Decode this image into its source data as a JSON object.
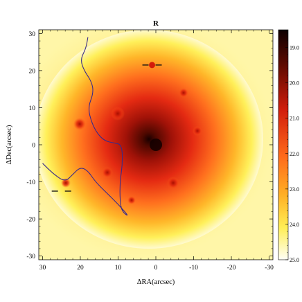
{
  "chart_data": {
    "type": "heatmap",
    "title": "R",
    "xlabel": "ΔRA(arcsec)",
    "ylabel": "ΔDec(arcsec)",
    "xlim": [
      31,
      -31
    ],
    "ylim": [
      -31,
      31
    ],
    "x_ticks": [
      30,
      20,
      10,
      0,
      -10,
      -20,
      -30
    ],
    "y_ticks": [
      30,
      20,
      10,
      0,
      -10,
      -20,
      -30
    ],
    "x_tick_labels": [
      "30",
      "20",
      "10",
      "0",
      "-10",
      "-20",
      "-30"
    ],
    "y_tick_labels": [
      "30",
      "20",
      "10",
      "0",
      "-10",
      "-20",
      "-30"
    ],
    "colorbar": {
      "range": [
        18.5,
        25.0
      ],
      "reversed": true,
      "ticks": [
        19.0,
        20.0,
        21.0,
        22.0,
        23.0,
        24.0,
        25.0
      ],
      "tick_labels": [
        "19.0",
        "20.0",
        "21.0",
        "22.0",
        "23.0",
        "24.0",
        "25.0"
      ],
      "colormap": "heat (black-red-orange-yellow-white)"
    },
    "features": {
      "galaxy_center": [
        0,
        0
      ],
      "bright_source_north": [
        1,
        21.5
      ],
      "marker_west": [
        25,
        -12.5
      ],
      "contour_line": [
        [
          18,
          29
        ],
        [
          18.5,
          26
        ],
        [
          20,
          23
        ],
        [
          19,
          20
        ],
        [
          17,
          17
        ],
        [
          16.5,
          14
        ],
        [
          18,
          10
        ],
        [
          17,
          6
        ],
        [
          15.5,
          3
        ],
        [
          13.5,
          1
        ],
        [
          11,
          0.5
        ],
        [
          9,
          0
        ],
        [
          8.8,
          -5
        ],
        [
          9.5,
          -10
        ],
        [
          9.5,
          -15
        ],
        [
          9,
          -18
        ],
        [
          7,
          -19.5
        ],
        [
          10,
          -16
        ],
        [
          13,
          -13
        ],
        [
          16,
          -10
        ],
        [
          18,
          -7
        ],
        [
          20,
          -6
        ],
        [
          22,
          -8
        ],
        [
          24,
          -10
        ],
        [
          27,
          -8
        ],
        [
          30,
          -5
        ]
      ]
    }
  }
}
